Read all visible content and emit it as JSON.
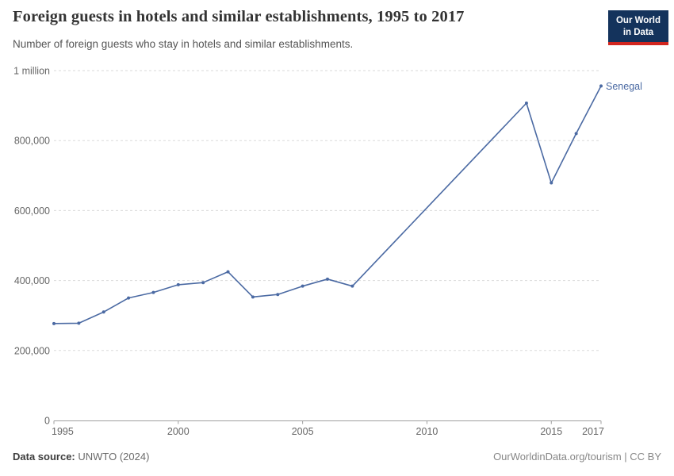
{
  "header": {
    "title": "Foreign guests in hotels and similar establishments, 1995 to 2017",
    "subtitle": "Number of foreign guests who stay in hotels and similar establishments.",
    "logo": {
      "line1": "Our World",
      "line2": "in Data",
      "bg_color": "#14335c",
      "bar_color": "#d2261f"
    }
  },
  "footer": {
    "source_label": "Data source:",
    "source_value": " UNWTO (2024)",
    "credit": "OurWorldinData.org/tourism | CC BY"
  },
  "colors": {
    "series_blue": "#4b6aa3",
    "gridline": "#dadada",
    "axis": "#9f9f9f",
    "tick_label": "#666666"
  },
  "chart_data": {
    "type": "line",
    "title": "Foreign guests in hotels and similar establishments, 1995 to 2017",
    "xlabel": "",
    "ylabel": "",
    "xlim": [
      1995,
      2017
    ],
    "ylim": [
      0,
      1000000
    ],
    "xticks": [
      1995,
      2000,
      2005,
      2010,
      2015,
      2017
    ],
    "yticks": [
      {
        "value": 0,
        "label": "0"
      },
      {
        "value": 200000,
        "label": "200,000"
      },
      {
        "value": 400000,
        "label": "400,000"
      },
      {
        "value": 600000,
        "label": "600,000"
      },
      {
        "value": 800000,
        "label": "800,000"
      },
      {
        "value": 1000000,
        "label": "1 million"
      }
    ],
    "grid": {
      "horizontal": true,
      "vertical": false,
      "style": "dashed"
    },
    "legend": "end-of-line-label",
    "series": [
      {
        "name": "Senegal",
        "color": "#4b6aa3",
        "points": [
          [
            1995,
            277000
          ],
          [
            1996,
            278000
          ],
          [
            1997,
            310000
          ],
          [
            1998,
            350000
          ],
          [
            1999,
            366000
          ],
          [
            2000,
            388000
          ],
          [
            2001,
            394000
          ],
          [
            2002,
            425000
          ],
          [
            2003,
            353000
          ],
          [
            2004,
            360000
          ],
          [
            2005,
            384000
          ],
          [
            2006,
            404000
          ],
          [
            2007,
            384000
          ],
          [
            2014,
            907000
          ],
          [
            2015,
            679000
          ],
          [
            2016,
            820000
          ],
          [
            2017,
            956000
          ]
        ]
      }
    ]
  }
}
